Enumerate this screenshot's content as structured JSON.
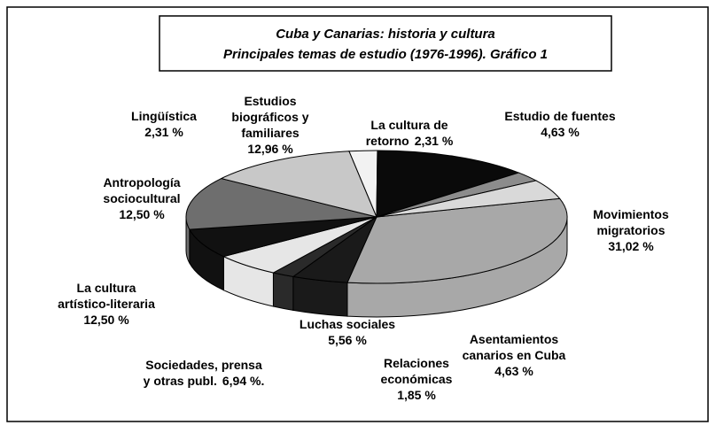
{
  "chart_data": {
    "type": "pie",
    "title": "Cuba y Canarias: historia y cultura",
    "subtitle": "Principales temas de estudio (1976-1996).  Gráfico 1",
    "categories": [
      "Movimientos migratorios",
      "Asentamientos canarios en Cuba",
      "Relaciones económicas",
      "Luchas sociales",
      "Sociedades, prensa y otras publ.",
      "La cultura artístico-literaria",
      "Antropología sociocultural",
      "Lingüística",
      "Estudios biográficos y familiares",
      "La cultura de retorno",
      "Estudio de fuentes"
    ],
    "values": [
      31.02,
      4.63,
      1.85,
      5.56,
      6.94,
      12.5,
      12.5,
      2.31,
      12.96,
      2.31,
      4.63
    ],
    "value_labels": [
      "31,02 %",
      "4,63 %",
      "1,85 %",
      "5,56 %",
      "6,94 %.",
      "12,50 %",
      "12,50 %",
      "2,31 %",
      "12,96 %",
      "2,31 %",
      "4,63 %"
    ],
    "colors": [
      "#a8a8a8",
      "#1a1a1a",
      "#2a2a2a",
      "#e6e6e6",
      "#111111",
      "#6e6e6e",
      "#c8c8c8",
      "#f2f2f2",
      "#0a0a0a",
      "#8c8c8c",
      "#d9d9d9"
    ]
  }
}
